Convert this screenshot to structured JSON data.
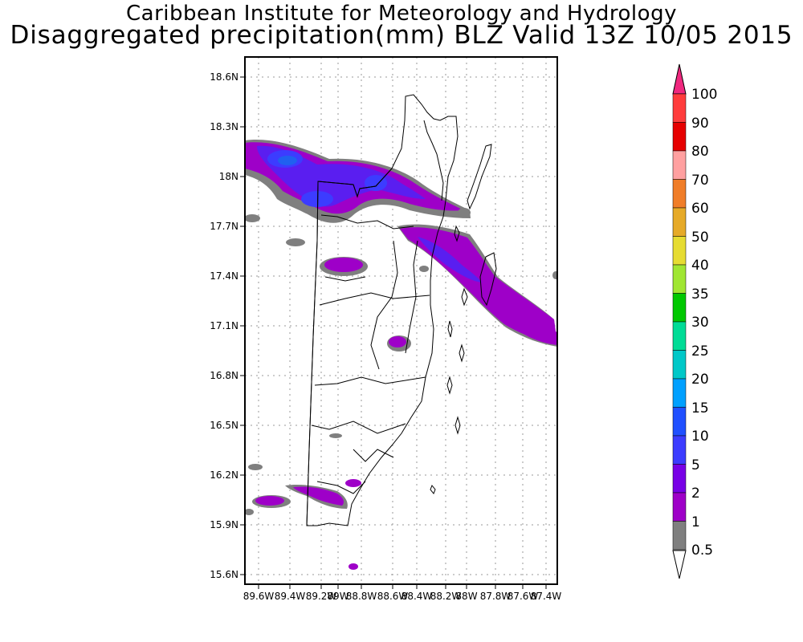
{
  "titles": {
    "line1": "Caribbean Institute for Meteorology and Hydrology",
    "line2": "Disaggregated precipitation(mm) BLZ Valid 13Z 10/05 2015"
  },
  "map": {
    "lat_labels": [
      "18.6N",
      "18.3N",
      "18N",
      "17.7N",
      "17.4N",
      "17.1N",
      "16.8N",
      "16.5N",
      "16.2N",
      "15.9N",
      "15.6N"
    ],
    "lon_labels": [
      "89.6W",
      "89.4W",
      "89.2W",
      "89W",
      "88.8W",
      "88.6W",
      "88.4W",
      "88.2W",
      "88W",
      "87.8W",
      "87.6W",
      "87.4W"
    ],
    "grid": true,
    "colors": {
      "frame": "#000000",
      "grid": "#9a9a9a",
      "coast": "#000000",
      "prec_0_5": "#7f7f7f",
      "prec_1": "#9e00c8",
      "prec_2": "#7800e6",
      "prec_5": "#5a1ef0",
      "prec_10": "#3c3cff",
      "prec_15": "#2060f0"
    }
  },
  "colorbar": {
    "levels": [
      "100",
      "90",
      "80",
      "70",
      "60",
      "50",
      "40",
      "35",
      "30",
      "25",
      "20",
      "15",
      "10",
      "5",
      "2",
      "1",
      "0.5"
    ],
    "colors": [
      "#f0287f",
      "#ff3c3c",
      "#e60000",
      "#ffa0a0",
      "#f07d28",
      "#e6aa28",
      "#e6dc32",
      "#a0e632",
      "#00c800",
      "#00dc96",
      "#00c8c8",
      "#00a0ff",
      "#2050ff",
      "#3c3cff",
      "#7800e6",
      "#9e00c8",
      "#7f7f7f",
      "#ffffff"
    ]
  }
}
